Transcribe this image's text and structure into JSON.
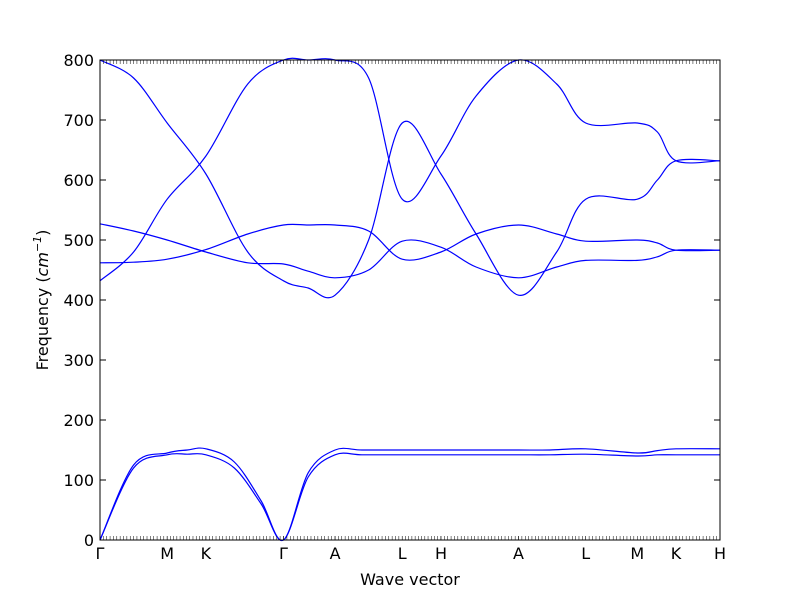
{
  "chart_data": {
    "type": "line",
    "title": "",
    "xlabel": "Wave vector",
    "ylabel": "Frequency (",
    "ylabel_unit": "cm",
    "ylabel_exp": "−1",
    "ylabel_close": ")",
    "ylim": [
      0,
      800
    ],
    "yticks": [
      0,
      100,
      200,
      300,
      400,
      500,
      600,
      700,
      800
    ],
    "x_tick_labels": [
      "Γ",
      "M",
      "K",
      "Γ",
      "A",
      "L",
      "H",
      "A",
      "L",
      "M",
      "K",
      "H"
    ],
    "x_tick_positions": [
      0.0,
      1.0,
      1.577,
      2.732,
      3.5,
      4.5,
      5.077,
      6.232,
      7.232,
      8.0,
      8.577,
      9.232
    ],
    "xlim": [
      0.0,
      9.232
    ],
    "grid": false,
    "line_color": "#0000ff",
    "series": [
      {
        "x": [
          0.0,
          0.5,
          1.0,
          1.3,
          1.577,
          2.0,
          2.4,
          2.732,
          3.1,
          3.5,
          3.9,
          4.5,
          5.077,
          5.6,
          6.232,
          6.7,
          7.232,
          8.0,
          8.3,
          8.577,
          9.232
        ],
        "values": [
          0,
          120,
          142,
          143,
          142,
          120,
          60,
          0,
          105,
          142,
          142,
          142,
          142,
          142,
          142,
          142,
          143,
          140,
          142,
          142,
          142
        ]
      },
      {
        "x": [
          0.0,
          0.5,
          1.0,
          1.3,
          1.577,
          2.0,
          2.4,
          2.732,
          3.1,
          3.5,
          3.9,
          4.5,
          5.077,
          5.6,
          6.232,
          6.7,
          7.232,
          8.0,
          8.3,
          8.577,
          9.232
        ],
        "values": [
          0,
          125,
          145,
          150,
          152,
          130,
          65,
          0,
          112,
          150,
          150,
          150,
          150,
          150,
          150,
          150,
          152,
          145,
          149,
          152,
          152
        ]
      },
      {
        "x": [
          0.0,
          0.5,
          1.0,
          1.577,
          2.2,
          2.732,
          3.1,
          3.5,
          4.0,
          4.5,
          5.077,
          5.6,
          6.232,
          6.8,
          7.232,
          8.0,
          8.3,
          8.577,
          9.232
        ],
        "values": [
          800,
          770,
          695,
          610,
          480,
          432,
          420,
          408,
          500,
          695,
          610,
          510,
          408,
          480,
          568,
          568,
          600,
          632,
          632
        ]
      },
      {
        "x": [
          0.0,
          0.5,
          1.0,
          1.577,
          2.2,
          2.732,
          3.1,
          3.5,
          4.0,
          4.5,
          5.077,
          5.6,
          6.232,
          6.8,
          7.232,
          8.0,
          8.3,
          8.577,
          9.232
        ],
        "values": [
          432,
          480,
          568,
          640,
          760,
          800,
          800,
          800,
          770,
          568,
          640,
          740,
          800,
          760,
          695,
          695,
          680,
          632,
          632
        ]
      },
      {
        "x": [
          0.0,
          0.5,
          1.0,
          1.577,
          2.2,
          2.732,
          3.1,
          3.5,
          4.0,
          4.5,
          5.077,
          5.6,
          6.232,
          6.8,
          7.232,
          8.0,
          8.3,
          8.577,
          9.232
        ],
        "values": [
          527,
          515,
          500,
          480,
          462,
          460,
          448,
          437,
          450,
          498,
          488,
          455,
          437,
          455,
          466,
          466,
          472,
          483,
          483
        ]
      },
      {
        "x": [
          0.0,
          0.5,
          1.0,
          1.577,
          2.2,
          2.732,
          3.1,
          3.5,
          4.0,
          4.5,
          5.077,
          5.6,
          6.232,
          6.8,
          7.232,
          8.0,
          8.3,
          8.577,
          9.232
        ],
        "values": [
          462,
          463,
          468,
          484,
          510,
          525,
          525,
          525,
          515,
          468,
          480,
          510,
          525,
          510,
          498,
          500,
          495,
          483,
          483
        ]
      }
    ]
  }
}
